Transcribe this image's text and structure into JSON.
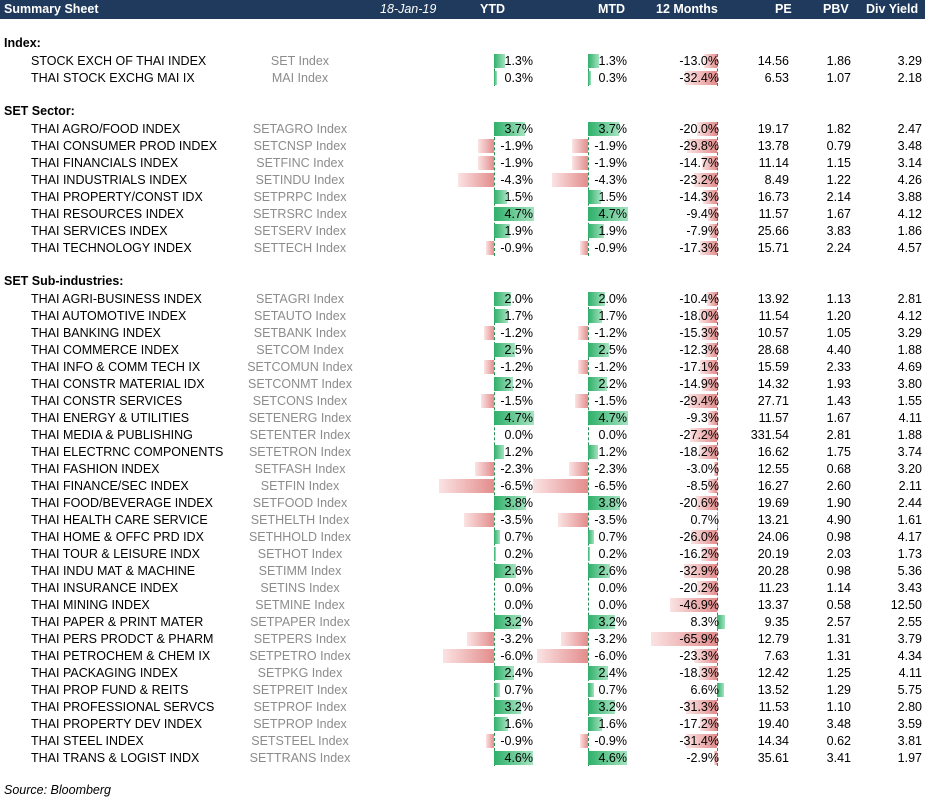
{
  "header": {
    "title": "Summary Sheet",
    "date": "18-Jan-19",
    "columns": [
      "YTD",
      "MTD",
      "12 Months",
      "PE",
      "PBV",
      "Div Yield"
    ]
  },
  "bar_scale_pct_max": {
    "ytd": 6.5,
    "mtd": 6.5,
    "twelve_months": 65.9
  },
  "sections": [
    {
      "title": "Index:",
      "rows": [
        {
          "name": "STOCK EXCH OF THAI INDEX",
          "ticker": "SET Index",
          "ytd": "1.3%",
          "mtd": "1.3%",
          "m12": "-13.0%",
          "pe": "14.56",
          "pbv": "1.86",
          "dy": "3.29"
        },
        {
          "name": "THAI STOCK EXCHG MAI IX",
          "ticker": "MAI Index",
          "ytd": "0.3%",
          "mtd": "0.3%",
          "m12": "-32.4%",
          "pe": "6.53",
          "pbv": "1.07",
          "dy": "2.18"
        }
      ]
    },
    {
      "title": "SET Sector:",
      "rows": [
        {
          "name": "THAI AGRO/FOOD INDEX",
          "ticker": "SETAGRO Index",
          "ytd": "3.7%",
          "mtd": "3.7%",
          "m12": "-20.0%",
          "pe": "19.17",
          "pbv": "1.82",
          "dy": "2.47"
        },
        {
          "name": "THAI CONSUMER PROD INDEX",
          "ticker": "SETCNSP Index",
          "ytd": "-1.9%",
          "mtd": "-1.9%",
          "m12": "-29.8%",
          "pe": "13.78",
          "pbv": "0.79",
          "dy": "3.48"
        },
        {
          "name": "THAI FINANCIALS INDEX",
          "ticker": "SETFINC Index",
          "ytd": "-1.9%",
          "mtd": "-1.9%",
          "m12": "-14.7%",
          "pe": "11.14",
          "pbv": "1.15",
          "dy": "3.14"
        },
        {
          "name": "THAI INDUSTRIALS INDEX",
          "ticker": "SETINDU Index",
          "ytd": "-4.3%",
          "mtd": "-4.3%",
          "m12": "-23.2%",
          "pe": "8.49",
          "pbv": "1.22",
          "dy": "4.26"
        },
        {
          "name": "THAI PROPERTY/CONST IDX",
          "ticker": "SETPRPC Index",
          "ytd": "1.5%",
          "mtd": "1.5%",
          "m12": "-14.3%",
          "pe": "16.73",
          "pbv": "2.14",
          "dy": "3.88"
        },
        {
          "name": "THAI RESOURCES INDEX",
          "ticker": "SETRSRC Index",
          "ytd": "4.7%",
          "mtd": "4.7%",
          "m12": "-9.4%",
          "pe": "11.57",
          "pbv": "1.67",
          "dy": "4.12"
        },
        {
          "name": "THAI SERVICES INDEX",
          "ticker": "SETSERV Index",
          "ytd": "1.9%",
          "mtd": "1.9%",
          "m12": "-7.9%",
          "pe": "25.66",
          "pbv": "3.83",
          "dy": "1.86"
        },
        {
          "name": "THAI TECHNOLOGY INDEX",
          "ticker": "SETTECH Index",
          "ytd": "-0.9%",
          "mtd": "-0.9%",
          "m12": "-17.3%",
          "pe": "15.71",
          "pbv": "2.24",
          "dy": "4.57"
        }
      ]
    },
    {
      "title": "SET Sub-industries:",
      "rows": [
        {
          "name": "THAI AGRI-BUSINESS INDEX",
          "ticker": "SETAGRI Index",
          "ytd": "2.0%",
          "mtd": "2.0%",
          "m12": "-10.4%",
          "pe": "13.92",
          "pbv": "1.13",
          "dy": "2.81"
        },
        {
          "name": "THAI AUTOMOTIVE INDEX",
          "ticker": "SETAUTO Index",
          "ytd": "1.7%",
          "mtd": "1.7%",
          "m12": "-18.0%",
          "pe": "11.54",
          "pbv": "1.20",
          "dy": "4.12"
        },
        {
          "name": "THAI BANKING INDEX",
          "ticker": "SETBANK Index",
          "ytd": "-1.2%",
          "mtd": "-1.2%",
          "m12": "-15.3%",
          "pe": "10.57",
          "pbv": "1.05",
          "dy": "3.29"
        },
        {
          "name": "THAI COMMERCE INDEX",
          "ticker": "SETCOM Index",
          "ytd": "2.5%",
          "mtd": "2.5%",
          "m12": "-12.3%",
          "pe": "28.68",
          "pbv": "4.40",
          "dy": "1.88"
        },
        {
          "name": "THAI INFO & COMM TECH IX",
          "ticker": "SETCOMUN Index",
          "ytd": "-1.2%",
          "mtd": "-1.2%",
          "m12": "-17.1%",
          "pe": "15.59",
          "pbv": "2.33",
          "dy": "4.69"
        },
        {
          "name": "THAI CONSTR MATERIAL IDX",
          "ticker": "SETCONMT Index",
          "ytd": "2.2%",
          "mtd": "2.2%",
          "m12": "-14.9%",
          "pe": "14.32",
          "pbv": "1.93",
          "dy": "3.80"
        },
        {
          "name": "THAI CONSTR SERVICES",
          "ticker": "SETCONS Index",
          "ytd": "-1.5%",
          "mtd": "-1.5%",
          "m12": "-29.4%",
          "pe": "27.71",
          "pbv": "1.43",
          "dy": "1.55"
        },
        {
          "name": "THAI ENERGY & UTILITIES",
          "ticker": "SETENERG Index",
          "ytd": "4.7%",
          "mtd": "4.7%",
          "m12": "-9.3%",
          "pe": "11.57",
          "pbv": "1.67",
          "dy": "4.11"
        },
        {
          "name": "THAI MEDIA & PUBLISHING",
          "ticker": "SETENTER Index",
          "ytd": "0.0%",
          "mtd": "0.0%",
          "m12": "-27.2%",
          "pe": "331.54",
          "pbv": "2.81",
          "dy": "1.88"
        },
        {
          "name": "THAI ELECTRNC COMPONENTS",
          "ticker": "SETETRON Index",
          "ytd": "1.2%",
          "mtd": "1.2%",
          "m12": "-18.2%",
          "pe": "16.62",
          "pbv": "1.75",
          "dy": "3.74"
        },
        {
          "name": "THAI FASHION INDEX",
          "ticker": "SETFASH Index",
          "ytd": "-2.3%",
          "mtd": "-2.3%",
          "m12": "-3.0%",
          "pe": "12.55",
          "pbv": "0.68",
          "dy": "3.20"
        },
        {
          "name": "THAI FINANCE/SEC INDEX",
          "ticker": "SETFIN Index",
          "ytd": "-6.5%",
          "mtd": "-6.5%",
          "m12": "-8.5%",
          "pe": "16.27",
          "pbv": "2.60",
          "dy": "2.11"
        },
        {
          "name": "THAI FOOD/BEVERAGE INDEX",
          "ticker": "SETFOOD Index",
          "ytd": "3.8%",
          "mtd": "3.8%",
          "m12": "-20.6%",
          "pe": "19.69",
          "pbv": "1.90",
          "dy": "2.44"
        },
        {
          "name": "THAI HEALTH CARE SERVICE",
          "ticker": "SETHELTH Index",
          "ytd": "-3.5%",
          "mtd": "-3.5%",
          "m12": "0.7%",
          "pe": "13.21",
          "pbv": "4.90",
          "dy": "1.61"
        },
        {
          "name": "THAI HOME & OFFC PRD IDX",
          "ticker": "SETHHOLD Index",
          "ytd": "0.7%",
          "mtd": "0.7%",
          "m12": "-26.0%",
          "pe": "24.06",
          "pbv": "0.98",
          "dy": "4.17"
        },
        {
          "name": "THAI TOUR & LEISURE INDX",
          "ticker": "SETHOT Index",
          "ytd": "0.2%",
          "mtd": "0.2%",
          "m12": "-16.2%",
          "pe": "20.19",
          "pbv": "2.03",
          "dy": "1.73"
        },
        {
          "name": "THAI INDU MAT & MACHINE",
          "ticker": "SETIMM Index",
          "ytd": "2.6%",
          "mtd": "2.6%",
          "m12": "-32.9%",
          "pe": "20.28",
          "pbv": "0.98",
          "dy": "5.36"
        },
        {
          "name": "THAI INSURANCE INDEX",
          "ticker": "SETINS Index",
          "ytd": "0.0%",
          "mtd": "0.0%",
          "m12": "-20.2%",
          "pe": "11.23",
          "pbv": "1.14",
          "dy": "3.43"
        },
        {
          "name": "THAI MINING INDEX",
          "ticker": "SETMINE Index",
          "ytd": "0.0%",
          "mtd": "0.0%",
          "m12": "-46.9%",
          "pe": "13.37",
          "pbv": "0.58",
          "dy": "12.50"
        },
        {
          "name": "THAI PAPER & PRINT MATER",
          "ticker": "SETPAPER Index",
          "ytd": "3.2%",
          "mtd": "3.2%",
          "m12": "8.3%",
          "pe": "9.35",
          "pbv": "2.57",
          "dy": "2.55"
        },
        {
          "name": "THAI PERS PRODCT & PHARM",
          "ticker": "SETPERS Index",
          "ytd": "-3.2%",
          "mtd": "-3.2%",
          "m12": "-65.9%",
          "pe": "12.79",
          "pbv": "1.31",
          "dy": "3.79"
        },
        {
          "name": "THAI PETROCHEM & CHEM IX",
          "ticker": "SETPETRO Index",
          "ytd": "-6.0%",
          "mtd": "-6.0%",
          "m12": "-23.3%",
          "pe": "7.63",
          "pbv": "1.31",
          "dy": "4.34"
        },
        {
          "name": "THAI PACKAGING INDEX",
          "ticker": "SETPKG Index",
          "ytd": "2.4%",
          "mtd": "2.4%",
          "m12": "-18.3%",
          "pe": "12.42",
          "pbv": "1.25",
          "dy": "4.11"
        },
        {
          "name": "THAI PROP FUND & REITS",
          "ticker": "SETPREIT Index",
          "ytd": "0.7%",
          "mtd": "0.7%",
          "m12": "6.6%",
          "pe": "13.52",
          "pbv": "1.29",
          "dy": "5.75"
        },
        {
          "name": "THAI PROFESSIONAL SERVCS",
          "ticker": "SETPROF Index",
          "ytd": "3.2%",
          "mtd": "3.2%",
          "m12": "-31.3%",
          "pe": "11.53",
          "pbv": "1.10",
          "dy": "2.80"
        },
        {
          "name": "THAI PROPERTY DEV INDEX",
          "ticker": "SETPROP Index",
          "ytd": "1.6%",
          "mtd": "1.6%",
          "m12": "-17.2%",
          "pe": "19.40",
          "pbv": "3.48",
          "dy": "3.59"
        },
        {
          "name": "THAI STEEL INDEX",
          "ticker": "SETSTEEL Index",
          "ytd": "-0.9%",
          "mtd": "-0.9%",
          "m12": "-31.4%",
          "pe": "14.34",
          "pbv": "0.62",
          "dy": "3.81"
        },
        {
          "name": "THAI TRANS & LOGIST INDX",
          "ticker": "SETTRANS Index",
          "ytd": "4.6%",
          "mtd": "4.6%",
          "m12": "-2.9%",
          "pe": "35.61",
          "pbv": "3.41",
          "dy": "1.97"
        }
      ]
    }
  ],
  "source": "Source: Bloomberg",
  "colors": {
    "header_bg": "#1f3a5c",
    "positive_bar": "#2fb06a",
    "negative_bar": "#e38c8c",
    "ticker_text": "#8c8c8c"
  }
}
